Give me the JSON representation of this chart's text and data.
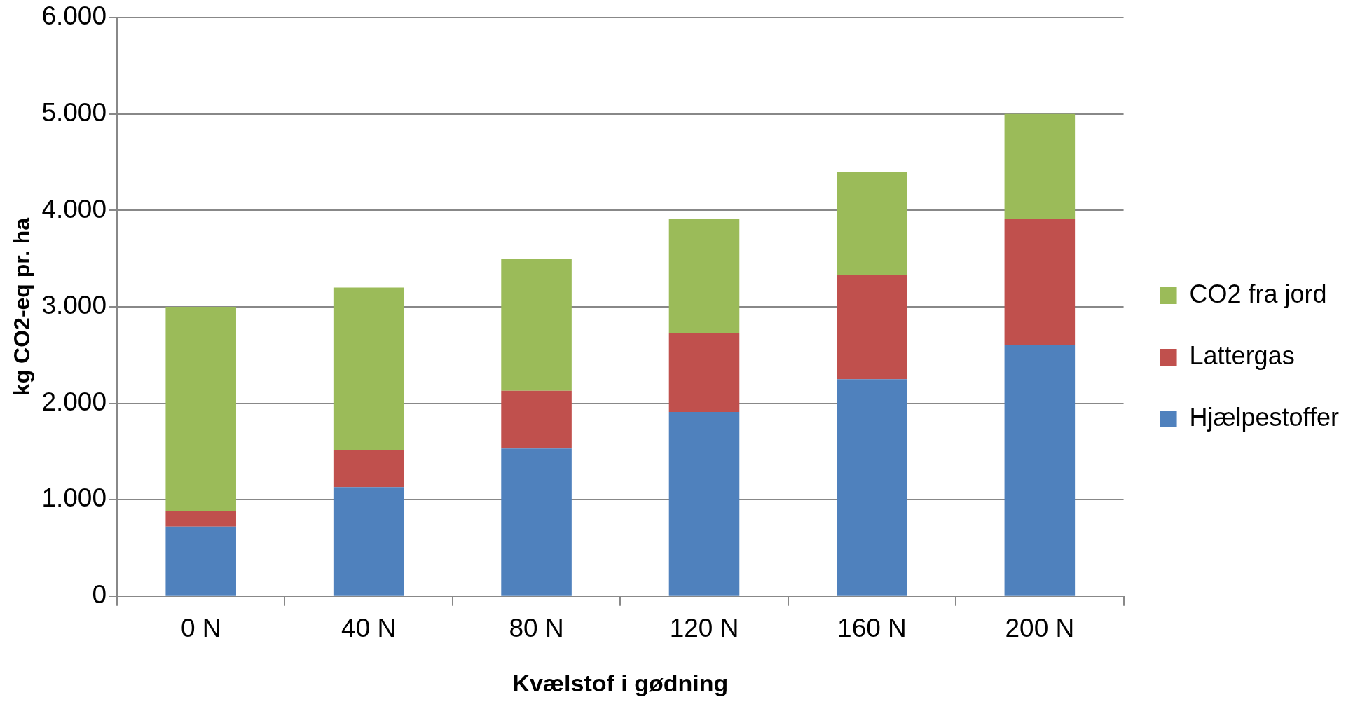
{
  "chart_data": {
    "type": "bar",
    "stacked": true,
    "xlabel": "Kvælstof i gødning",
    "ylabel": "kg CO2-eq pr. ha",
    "categories": [
      "0 N",
      "40 N",
      "80 N",
      "120 N",
      "160 N",
      "200 N"
    ],
    "series": [
      {
        "name": "Hjælpestoffer",
        "color": "#4f81bd",
        "values": [
          720,
          1130,
          1530,
          1910,
          2250,
          2600
        ]
      },
      {
        "name": "Lattergas",
        "color": "#c0504d",
        "values": [
          160,
          380,
          600,
          820,
          1080,
          1310
        ]
      },
      {
        "name": "CO2 fra jord",
        "color": "#9bbb59",
        "values": [
          2120,
          1690,
          1370,
          1180,
          1070,
          1090
        ]
      }
    ],
    "ylim": [
      0,
      6000
    ],
    "yticks": [
      {
        "value": 0,
        "label": "0"
      },
      {
        "value": 1000,
        "label": "1.000"
      },
      {
        "value": 2000,
        "label": "2.000"
      },
      {
        "value": 3000,
        "label": "3.000"
      },
      {
        "value": 4000,
        "label": "4.000"
      },
      {
        "value": 5000,
        "label": "5.000"
      },
      {
        "value": 6000,
        "label": "6.000"
      }
    ],
    "grid": "y",
    "legend": "right"
  }
}
